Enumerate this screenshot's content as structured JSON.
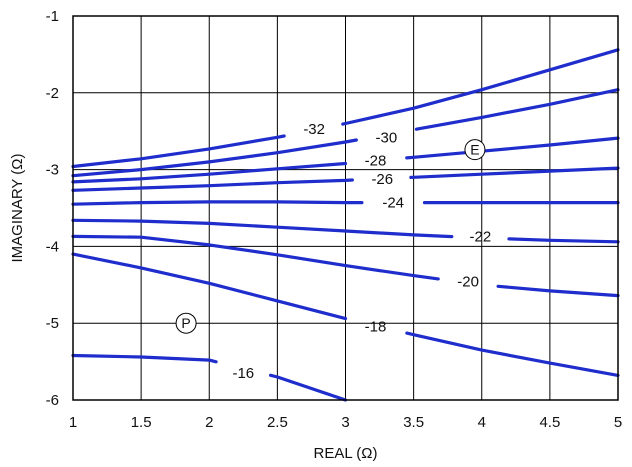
{
  "chart_data": {
    "type": "line",
    "title": "",
    "xlabel": "REAL (Ω)",
    "ylabel": "IMAGINARY (Ω)",
    "xlim": [
      1,
      5
    ],
    "ylim": [
      -6,
      -1
    ],
    "grid": true,
    "line_color": "#1f2dcc",
    "xticks": [
      {
        "value": 1,
        "label": "1"
      },
      {
        "value": 1.5,
        "label": "1.5"
      },
      {
        "value": 2,
        "label": "2"
      },
      {
        "value": 2.5,
        "label": "2.5"
      },
      {
        "value": 3,
        "label": "3"
      },
      {
        "value": 3.5,
        "label": "3.5"
      },
      {
        "value": 4,
        "label": "4"
      },
      {
        "value": 4.5,
        "label": "4.5"
      },
      {
        "value": 5,
        "label": "5"
      }
    ],
    "yticks": [
      {
        "value": -1,
        "label": "-1"
      },
      {
        "value": -2,
        "label": "-2"
      },
      {
        "value": -3,
        "label": "-3"
      },
      {
        "value": -4,
        "label": "-4"
      },
      {
        "value": -5,
        "label": "-5"
      },
      {
        "value": -6,
        "label": "-6"
      }
    ],
    "series": [
      {
        "name": "-32",
        "label": "-32",
        "points": [
          [
            1,
            -2.96
          ],
          [
            1.5,
            -2.86
          ],
          [
            2,
            -2.73
          ],
          [
            2.5,
            -2.58
          ],
          [
            3,
            -2.4
          ],
          [
            3.5,
            -2.2
          ],
          [
            4,
            -1.96
          ],
          [
            4.5,
            -1.7
          ],
          [
            5,
            -1.44
          ]
        ],
        "gap": [
          2.55,
          2.98
        ],
        "label_at": [
          2.77,
          -2.47
        ]
      },
      {
        "name": "-30",
        "label": "-30",
        "points": [
          [
            1,
            -3.08
          ],
          [
            1.5,
            -3.0
          ],
          [
            2,
            -2.9
          ],
          [
            2.5,
            -2.78
          ],
          [
            3,
            -2.64
          ],
          [
            3.5,
            -2.48
          ],
          [
            4,
            -2.32
          ],
          [
            4.5,
            -2.15
          ],
          [
            5,
            -1.96
          ]
        ],
        "gap": [
          3.08,
          3.52
        ],
        "label_at": [
          3.3,
          -2.58
        ]
      },
      {
        "name": "-28",
        "label": "-28",
        "points": [
          [
            1,
            -3.16
          ],
          [
            1.5,
            -3.12
          ],
          [
            2,
            -3.06
          ],
          [
            2.5,
            -2.99
          ],
          [
            3,
            -2.92
          ],
          [
            3.5,
            -2.84
          ],
          [
            4,
            -2.76
          ],
          [
            4.5,
            -2.68
          ],
          [
            5,
            -2.59
          ]
        ],
        "gap": [
          3.0,
          3.45
        ],
        "label_at": [
          3.22,
          -2.88
        ]
      },
      {
        "name": "-26",
        "label": "-26",
        "points": [
          [
            1,
            -3.27
          ],
          [
            1.5,
            -3.24
          ],
          [
            2,
            -3.21
          ],
          [
            2.5,
            -3.17
          ],
          [
            3,
            -3.14
          ],
          [
            3.5,
            -3.1
          ],
          [
            4,
            -3.06
          ],
          [
            4.5,
            -3.02
          ],
          [
            5,
            -2.98
          ]
        ],
        "gap": [
          3.05,
          3.48
        ],
        "label_at": [
          3.27,
          -3.12
        ]
      },
      {
        "name": "-24",
        "label": "-24",
        "points": [
          [
            1,
            -3.45
          ],
          [
            1.5,
            -3.43
          ],
          [
            2,
            -3.42
          ],
          [
            2.5,
            -3.42
          ],
          [
            3,
            -3.43
          ],
          [
            3.5,
            -3.43
          ],
          [
            4,
            -3.43
          ],
          [
            4.5,
            -3.43
          ],
          [
            5,
            -3.43
          ]
        ],
        "gap": [
          3.12,
          3.58
        ],
        "label_at": [
          3.35,
          -3.43
        ]
      },
      {
        "name": "-22",
        "label": "-22",
        "points": [
          [
            1,
            -3.66
          ],
          [
            1.5,
            -3.67
          ],
          [
            2,
            -3.7
          ],
          [
            2.5,
            -3.75
          ],
          [
            3,
            -3.8
          ],
          [
            3.5,
            -3.85
          ],
          [
            4,
            -3.89
          ],
          [
            4.5,
            -3.92
          ],
          [
            5,
            -3.94
          ]
        ],
        "gap": [
          3.78,
          4.2
        ],
        "label_at": [
          3.99,
          -3.87
        ]
      },
      {
        "name": "-20",
        "label": "-20",
        "points": [
          [
            1,
            -3.87
          ],
          [
            1.5,
            -3.88
          ],
          [
            2,
            -3.98
          ],
          [
            2.5,
            -4.11
          ],
          [
            3,
            -4.25
          ],
          [
            3.5,
            -4.38
          ],
          [
            4,
            -4.5
          ],
          [
            4.5,
            -4.58
          ],
          [
            5,
            -4.64
          ]
        ],
        "gap": [
          3.68,
          4.12
        ],
        "label_at": [
          3.9,
          -4.46
        ]
      },
      {
        "name": "-18",
        "label": "-18",
        "points": [
          [
            1,
            -4.1
          ],
          [
            1.5,
            -4.28
          ],
          [
            2,
            -4.48
          ],
          [
            2.5,
            -4.71
          ],
          [
            3,
            -4.94
          ],
          [
            3.5,
            -5.15
          ],
          [
            4,
            -5.35
          ],
          [
            4.5,
            -5.52
          ],
          [
            5,
            -5.68
          ]
        ],
        "gap": [
          3.0,
          3.45
        ],
        "label_at": [
          3.22,
          -5.04
        ]
      },
      {
        "name": "-16",
        "label": "-16",
        "points": [
          [
            1,
            -5.42
          ],
          [
            1.5,
            -5.44
          ],
          [
            2,
            -5.48
          ],
          [
            2.5,
            -5.7
          ],
          [
            3,
            -6.0
          ]
        ],
        "gap": [
          2.05,
          2.45
        ],
        "label_at": [
          2.25,
          -5.65
        ]
      }
    ],
    "markers": [
      {
        "label": "E",
        "x": 3.95,
        "y": -2.74
      },
      {
        "label": "P",
        "x": 1.83,
        "y": -5.0
      }
    ]
  }
}
